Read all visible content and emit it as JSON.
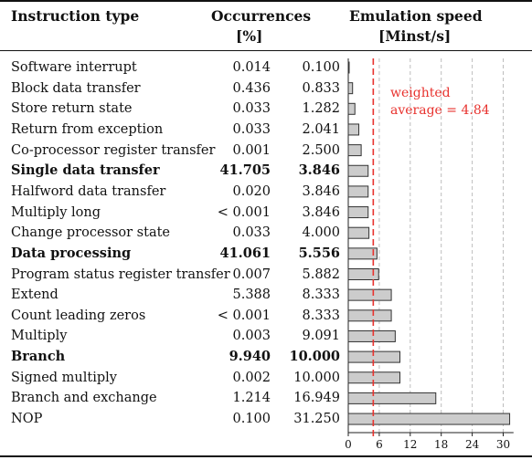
{
  "columns": {
    "type": "Instruction type",
    "occ_line1": "Occurrences",
    "occ_line2": "[%]",
    "speed_line1": "Emulation speed",
    "speed_line2": "[Minst/s]"
  },
  "rows": [
    {
      "name": "Software interrupt",
      "occurrences": "0.014",
      "speed": "0.100",
      "bold": false
    },
    {
      "name": "Block data transfer",
      "occurrences": "0.436",
      "speed": "0.833",
      "bold": false
    },
    {
      "name": "Store return state",
      "occurrences": "0.033",
      "speed": "1.282",
      "bold": false
    },
    {
      "name": "Return from exception",
      "occurrences": "0.033",
      "speed": "2.041",
      "bold": false
    },
    {
      "name": "Co-processor register transfer",
      "occurrences": "0.001",
      "speed": "2.500",
      "bold": false
    },
    {
      "name": "Single data transfer",
      "occurrences": "41.705",
      "speed": "3.846",
      "bold": true
    },
    {
      "name": "Halfword data transfer",
      "occurrences": "0.020",
      "speed": "3.846",
      "bold": false
    },
    {
      "name": "Multiply long",
      "occurrences": "< 0.001",
      "speed": "3.846",
      "bold": false
    },
    {
      "name": "Change processor state",
      "occurrences": "0.033",
      "speed": "4.000",
      "bold": false
    },
    {
      "name": "Data processing",
      "occurrences": "41.061",
      "speed": "5.556",
      "bold": true
    },
    {
      "name": "Program status register transfer",
      "occurrences": "0.007",
      "speed": "5.882",
      "bold": false
    },
    {
      "name": "Extend",
      "occurrences": "5.388",
      "speed": "8.333",
      "bold": false
    },
    {
      "name": "Count leading zeros",
      "occurrences": "< 0.001",
      "speed": "8.333",
      "bold": false
    },
    {
      "name": "Multiply",
      "occurrences": "0.003",
      "speed": "9.091",
      "bold": false
    },
    {
      "name": "Branch",
      "occurrences": "9.940",
      "speed": "10.000",
      "bold": true
    },
    {
      "name": "Signed multiply",
      "occurrences": "0.002",
      "speed": "10.000",
      "bold": false
    },
    {
      "name": "Branch and exchange",
      "occurrences": "1.214",
      "speed": "16.949",
      "bold": false
    },
    {
      "name": "NOP",
      "occurrences": "0.100",
      "speed": "31.250",
      "bold": false
    }
  ],
  "chart_data": {
    "type": "bar",
    "orientation": "horizontal",
    "categories": [
      "Software interrupt",
      "Block data transfer",
      "Store return state",
      "Return from exception",
      "Co-processor register transfer",
      "Single data transfer",
      "Halfword data transfer",
      "Multiply long",
      "Change processor state",
      "Data processing",
      "Program status register transfer",
      "Extend",
      "Count leading zeros",
      "Multiply",
      "Branch",
      "Signed multiply",
      "Branch and exchange",
      "NOP"
    ],
    "values": [
      0.1,
      0.833,
      1.282,
      2.041,
      2.5,
      3.846,
      3.846,
      3.846,
      4.0,
      5.556,
      5.882,
      8.333,
      8.333,
      9.091,
      10.0,
      10.0,
      16.949,
      31.25
    ],
    "xlim": [
      0,
      32
    ],
    "xticks": [
      0,
      6,
      12,
      18,
      24,
      30
    ],
    "grid": true,
    "reference_line": {
      "value": 4.84,
      "label_line1": "weighted",
      "label_line2": "average = 4.84",
      "color": "#e8322e"
    },
    "bar_color": "#cccccc"
  }
}
